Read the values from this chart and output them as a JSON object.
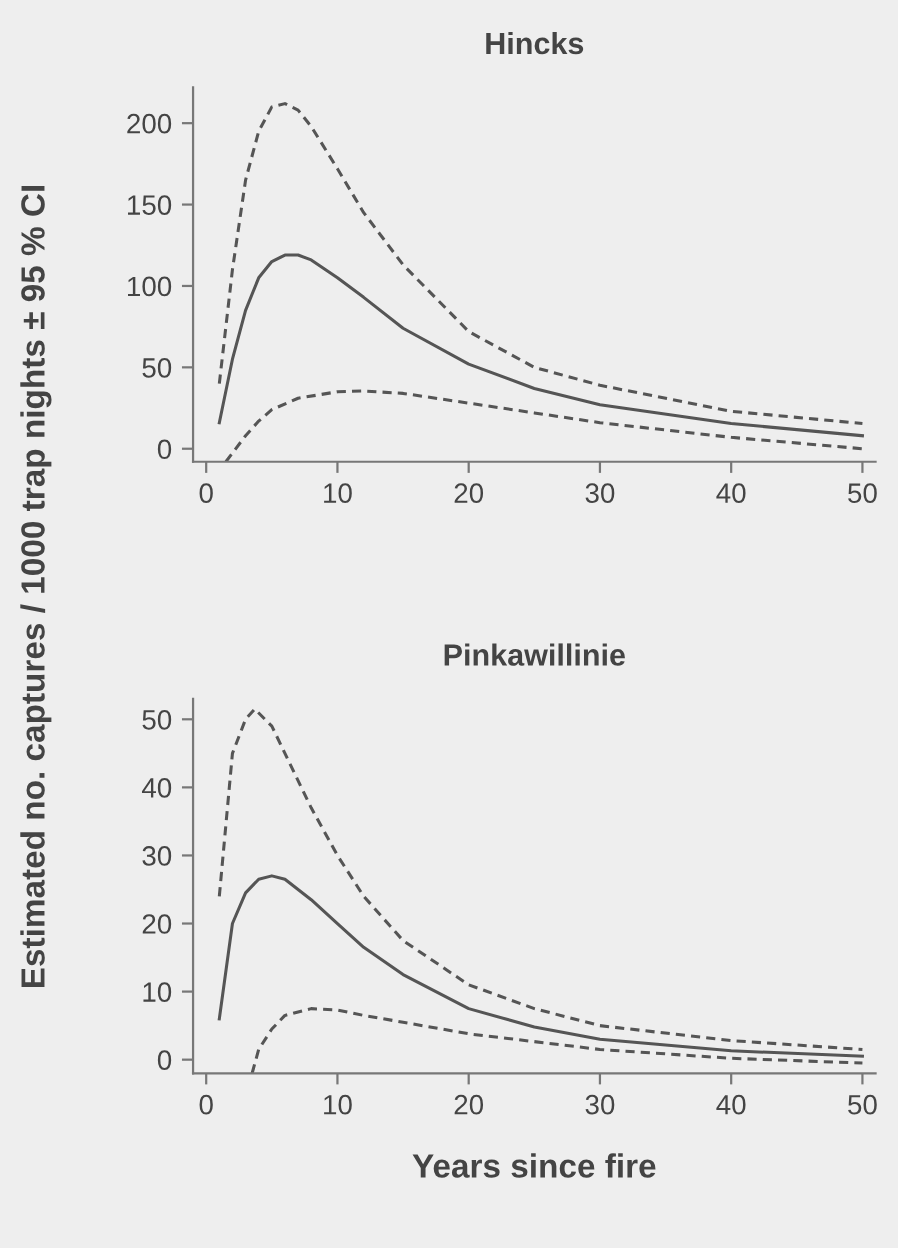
{
  "chart_data": [
    {
      "type": "line",
      "title": "Hincks",
      "ylabel": "Estimated no. captures / 1000 trap nights ± 95 % CI",
      "xlim": [
        -1,
        51
      ],
      "xticks": [
        0,
        10,
        20,
        30,
        40,
        50
      ],
      "ylim": [
        -8,
        222
      ],
      "yticks": [
        0,
        50,
        100,
        150,
        200
      ],
      "grid": false,
      "legend": false,
      "marker": "none",
      "series": [
        {
          "color": "#555555",
          "line_style": "solid",
          "x": [
            1,
            2,
            3,
            4,
            5,
            6,
            7,
            8,
            10,
            12,
            15,
            20,
            25,
            30,
            40,
            50
          ],
          "values": [
            16,
            55,
            85,
            105,
            115,
            119,
            119,
            116,
            105,
            93,
            74,
            52,
            37,
            27,
            15.5,
            8
          ]
        },
        {
          "color": "#555555",
          "line_style": "dashed",
          "x": [
            1,
            2,
            3,
            4,
            5,
            6,
            7,
            8,
            10,
            12,
            15,
            20,
            25,
            30,
            40,
            50
          ],
          "values": [
            40,
            110,
            165,
            195,
            210,
            212,
            208,
            198,
            172,
            145,
            113,
            72,
            50,
            39,
            23,
            15.5
          ]
        },
        {
          "color": "#555555",
          "line_style": "dashed",
          "x": [
            1.5,
            3,
            4,
            5,
            7,
            10,
            12,
            15,
            20,
            25,
            30,
            40,
            50
          ],
          "values": [
            -8,
            8,
            17,
            24,
            31,
            35,
            35.5,
            34,
            28,
            22,
            16,
            7,
            0
          ]
        }
      ]
    },
    {
      "type": "line",
      "title": "Pinkawillinie",
      "xlabel": "Years since fire",
      "xlim": [
        -1,
        51
      ],
      "xticks": [
        0,
        10,
        20,
        30,
        40,
        50
      ],
      "ylim": [
        -2,
        53
      ],
      "yticks": [
        0,
        10,
        20,
        30,
        40,
        50
      ],
      "grid": false,
      "legend": false,
      "marker": "none",
      "series": [
        {
          "color": "#555555",
          "line_style": "solid",
          "x": [
            1,
            2,
            3,
            4,
            5,
            6,
            8,
            10,
            12,
            15,
            20,
            25,
            30,
            40,
            50
          ],
          "values": [
            6,
            20,
            24.5,
            26.5,
            27,
            26.5,
            23.5,
            20,
            16.5,
            12.5,
            7.5,
            4.8,
            3,
            1.3,
            0.5
          ]
        },
        {
          "color": "#555555",
          "line_style": "dashed",
          "x": [
            1,
            2,
            3,
            3.7,
            5,
            6,
            8,
            10,
            12,
            15,
            20,
            25,
            30,
            40,
            50
          ],
          "values": [
            24,
            45,
            50,
            51.5,
            49,
            45,
            37,
            30,
            24,
            17.5,
            11,
            7.5,
            5,
            2.8,
            1.5
          ]
        },
        {
          "color": "#555555",
          "line_style": "dashed",
          "x": [
            3.5,
            4,
            5,
            6,
            8,
            10,
            12,
            15,
            20,
            30,
            40,
            50
          ],
          "values": [
            -2,
            1.5,
            4.5,
            6.5,
            7.5,
            7.3,
            6.5,
            5.5,
            3.8,
            1.5,
            0.2,
            -0.5
          ]
        }
      ]
    }
  ]
}
